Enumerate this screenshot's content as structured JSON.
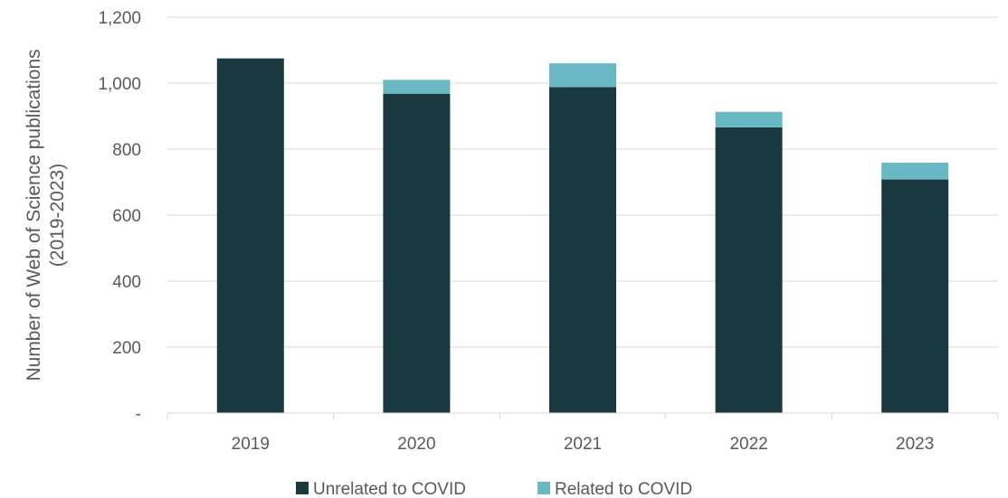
{
  "chart_data": {
    "type": "bar",
    "stacked": true,
    "categories": [
      "2019",
      "2020",
      "2021",
      "2022",
      "2023"
    ],
    "series": [
      {
        "name": "Unrelated to COVID",
        "values": [
          1075,
          968,
          988,
          866,
          708
        ],
        "color": "#1b3a3f"
      },
      {
        "name": "Related to COVID",
        "values": [
          0,
          42,
          72,
          47,
          51
        ],
        "color": "#6bb8c5"
      }
    ],
    "ylabel_lines": [
      "Number of Web of Science publications",
      "(2019-2023)"
    ],
    "xlabel": "",
    "ylim": [
      0,
      1200
    ],
    "yticks": [
      0,
      200,
      400,
      600,
      800,
      1000,
      1200
    ],
    "ytick_labels": [
      "-",
      "200",
      "400",
      "600",
      "800",
      "1,000",
      "1,200"
    ],
    "grid": true,
    "legend_position": "bottom"
  }
}
